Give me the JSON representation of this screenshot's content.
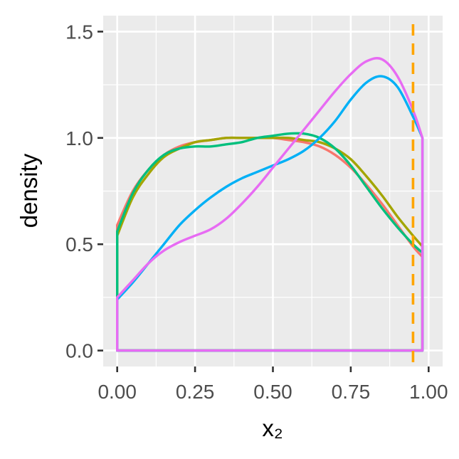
{
  "chart_data": {
    "type": "line",
    "title": "",
    "xlabel": "x₂",
    "ylabel": "density",
    "xlim": [
      -0.045,
      1.045
    ],
    "ylim": [
      -0.075,
      1.575
    ],
    "x_ticks": [
      0.0,
      0.25,
      0.5,
      0.75,
      1.0
    ],
    "x_tick_labels": [
      "0.00",
      "0.25",
      "0.50",
      "0.75",
      "1.00"
    ],
    "y_ticks": [
      0.0,
      0.5,
      1.0,
      1.5
    ],
    "y_tick_labels": [
      "0.0",
      "0.5",
      "1.0",
      "1.5"
    ],
    "grid": true,
    "legend": "none",
    "reference_line": {
      "x": 0.95,
      "style": "dashed",
      "color": "#FFA500"
    },
    "series": [
      {
        "color": "#F8766D",
        "x": [
          0.0,
          0.05,
          0.1,
          0.15,
          0.2,
          0.25,
          0.3,
          0.35,
          0.4,
          0.45,
          0.5,
          0.55,
          0.6,
          0.65,
          0.7,
          0.75,
          0.8,
          0.85,
          0.9,
          0.95,
          0.98
        ],
        "y": [
          0.59,
          0.75,
          0.85,
          0.92,
          0.96,
          0.98,
          0.99,
          1.0,
          1.0,
          1.0,
          1.0,
          0.99,
          0.98,
          0.96,
          0.92,
          0.86,
          0.78,
          0.69,
          0.59,
          0.49,
          0.44
        ]
      },
      {
        "color": "#A3A500",
        "x": [
          0.0,
          0.05,
          0.1,
          0.15,
          0.2,
          0.25,
          0.3,
          0.35,
          0.4,
          0.45,
          0.5,
          0.55,
          0.6,
          0.65,
          0.7,
          0.75,
          0.8,
          0.85,
          0.9,
          0.95,
          0.98
        ],
        "y": [
          0.54,
          0.72,
          0.83,
          0.91,
          0.95,
          0.98,
          0.99,
          1.0,
          1.0,
          1.0,
          1.0,
          1.0,
          0.99,
          0.98,
          0.95,
          0.9,
          0.82,
          0.73,
          0.63,
          0.54,
          0.49
        ]
      },
      {
        "color": "#00BF7D",
        "x": [
          0.0,
          0.05,
          0.1,
          0.15,
          0.2,
          0.25,
          0.3,
          0.35,
          0.4,
          0.45,
          0.5,
          0.55,
          0.6,
          0.65,
          0.7,
          0.75,
          0.8,
          0.85,
          0.9,
          0.95,
          0.98
        ],
        "y": [
          0.56,
          0.74,
          0.85,
          0.92,
          0.95,
          0.96,
          0.96,
          0.97,
          0.98,
          1.0,
          1.01,
          1.02,
          1.02,
          1.0,
          0.95,
          0.87,
          0.77,
          0.67,
          0.58,
          0.5,
          0.46
        ]
      },
      {
        "color": "#00B0F6",
        "x": [
          0.0,
          0.05,
          0.1,
          0.15,
          0.2,
          0.25,
          0.3,
          0.35,
          0.4,
          0.45,
          0.5,
          0.55,
          0.6,
          0.65,
          0.7,
          0.75,
          0.8,
          0.85,
          0.9,
          0.95,
          0.98
        ],
        "y": [
          0.24,
          0.32,
          0.41,
          0.5,
          0.59,
          0.66,
          0.72,
          0.77,
          0.81,
          0.84,
          0.87,
          0.9,
          0.94,
          1.0,
          1.08,
          1.18,
          1.26,
          1.29,
          1.24,
          1.1,
          1.0
        ]
      },
      {
        "color": "#E76BF3",
        "x": [
          0.0,
          0.05,
          0.1,
          0.15,
          0.2,
          0.25,
          0.3,
          0.35,
          0.4,
          0.45,
          0.5,
          0.55,
          0.6,
          0.65,
          0.7,
          0.75,
          0.8,
          0.85,
          0.9,
          0.95,
          0.98
        ],
        "y": [
          0.25,
          0.33,
          0.41,
          0.47,
          0.51,
          0.54,
          0.57,
          0.62,
          0.69,
          0.77,
          0.86,
          0.95,
          1.04,
          1.13,
          1.22,
          1.3,
          1.36,
          1.37,
          1.29,
          1.13,
          1.0
        ]
      }
    ]
  }
}
